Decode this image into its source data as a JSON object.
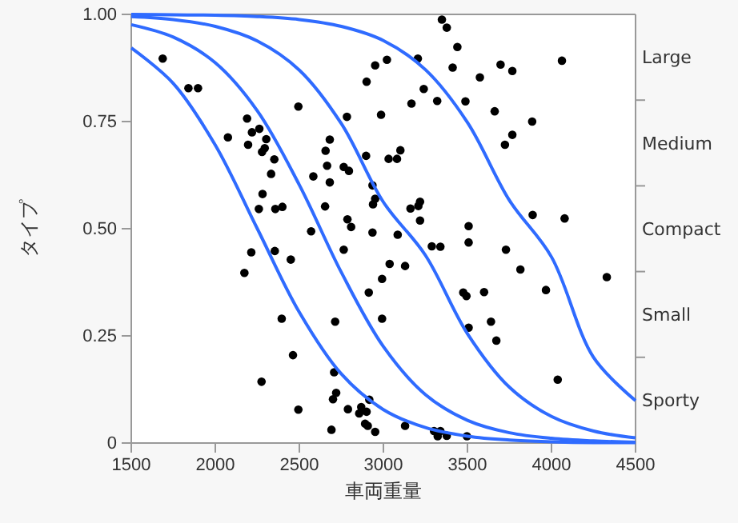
{
  "chart_data": {
    "type": "scatter",
    "xlabel": "車両重量",
    "ylabel": "タイプ",
    "xlim": [
      1500,
      4500
    ],
    "xticks": [
      1500,
      2000,
      2500,
      3000,
      3500,
      4000,
      4500
    ],
    "ylim": [
      0,
      1
    ],
    "yticks": [
      0,
      {
        "value": 0.25,
        "label": "0.25"
      },
      {
        "value": 0.5,
        "label": "0.50"
      },
      {
        "value": 0.75,
        "label": "0.75"
      },
      {
        "value": 1,
        "label": "1.00"
      }
    ],
    "y2_categories": [
      "Large",
      "Medium",
      "Compact",
      "Small",
      "Sporty"
    ],
    "grid": false,
    "marker": "circle",
    "series": [
      {
        "color": "#000000",
        "x": [
          1687,
          1840,
          1897,
          2075,
          2189,
          2218,
          2262,
          2195,
          2303,
          2278,
          2294,
          2351,
          2332,
          2281,
          2259,
          2357,
          2399,
          2494,
          2583,
          2656,
          2681,
          2665,
          2681,
          2653,
          2570,
          2764,
          2795,
          2783,
          2897,
          2900,
          2951,
          2986,
          2935,
          2951,
          2938,
          2786,
          2808,
          2935,
          2764,
          2214,
          2354,
          2449,
          2173,
          2913,
          2992,
          2395,
          2713,
          2462,
          2275,
          2707,
          2719,
          2700,
          2494,
          2789,
          2868,
          2856,
          2900,
          2916,
          2891,
          2907,
          2951,
          2691,
          2992,
          3348,
          3377,
          3440,
          3412,
          3205,
          3021,
          3240,
          3320,
          3488,
          3574,
          3697,
          3767,
          4062,
          3662,
          3885,
          3767,
          3723,
          3167,
          3101,
          3081,
          3031,
          3218,
          3208,
          3161,
          3218,
          3085,
          3507,
          3507,
          3288,
          3339,
          3037,
          3129,
          3888,
          4078,
          3729,
          3815,
          3967,
          4329,
          3475,
          3494,
          3599,
          3507,
          3640,
          3672,
          4037,
          3129,
          3301,
          3339,
          3323,
          3377,
          3497
        ],
        "values": [
          0.897,
          0.828,
          0.828,
          0.713,
          0.757,
          0.725,
          0.733,
          0.696,
          0.709,
          0.679,
          0.688,
          0.662,
          0.628,
          0.581,
          0.546,
          0.546,
          0.551,
          0.785,
          0.622,
          0.682,
          0.708,
          0.647,
          0.608,
          0.552,
          0.494,
          0.644,
          0.635,
          0.761,
          0.67,
          0.843,
          0.881,
          0.766,
          0.601,
          0.57,
          0.557,
          0.522,
          0.504,
          0.491,
          0.451,
          0.445,
          0.448,
          0.428,
          0.397,
          0.351,
          0.383,
          0.29,
          0.283,
          0.205,
          0.143,
          0.165,
          0.117,
          0.102,
          0.078,
          0.079,
          0.084,
          0.069,
          0.073,
          0.101,
          0.045,
          0.04,
          0.026,
          0.031,
          0.29,
          0.988,
          0.969,
          0.924,
          0.876,
          0.897,
          0.894,
          0.826,
          0.798,
          0.797,
          0.853,
          0.883,
          0.868,
          0.892,
          0.774,
          0.75,
          0.719,
          0.696,
          0.792,
          0.683,
          0.663,
          0.663,
          0.563,
          0.553,
          0.547,
          0.519,
          0.486,
          0.506,
          0.468,
          0.459,
          0.458,
          0.418,
          0.413,
          0.532,
          0.524,
          0.451,
          0.405,
          0.357,
          0.387,
          0.351,
          0.343,
          0.352,
          0.269,
          0.283,
          0.239,
          0.148,
          0.04,
          0.028,
          0.028,
          0.016,
          0.017,
          0.016
        ]
      },
      {
        "type": "line",
        "color": "#2f6bff",
        "marker": "none",
        "x": [
          1500,
          1750,
          2000,
          2250,
          2500,
          2750,
          3000,
          3250,
          3500,
          3750,
          4000,
          4250,
          4500
        ],
        "values": [
          0.922,
          0.839,
          0.695,
          0.5,
          0.305,
          0.161,
          0.078,
          0.036,
          0.016,
          0.007,
          0.003,
          0.001,
          0.001
        ]
      },
      {
        "type": "line",
        "color": "#2f6bff",
        "marker": "none",
        "x": [
          1500,
          1750,
          2000,
          2250,
          2500,
          2750,
          3000,
          3250,
          3500,
          3750,
          4000,
          4250,
          4500
        ],
        "values": [
          0.976,
          0.947,
          0.887,
          0.775,
          0.602,
          0.398,
          0.225,
          0.113,
          0.053,
          0.024,
          0.011,
          0.005,
          0.002
        ]
      },
      {
        "type": "line",
        "color": "#2f6bff",
        "marker": "none",
        "x": [
          1500,
          1750,
          2000,
          2250,
          2500,
          2750,
          3000,
          3250,
          3500,
          3750,
          4000,
          4250,
          4500
        ],
        "values": [
          0.995,
          0.988,
          0.972,
          0.938,
          0.87,
          0.745,
          0.562,
          0.438,
          0.255,
          0.13,
          0.062,
          0.028,
          0.012
        ]
      },
      {
        "type": "line",
        "color": "#2f6bff",
        "marker": "none",
        "x": [
          1500,
          1750,
          2000,
          2250,
          2500,
          2750,
          3000,
          3250,
          3500,
          3750,
          4000,
          4250,
          4500
        ],
        "values": [
          1.0,
          0.999,
          0.998,
          0.995,
          0.988,
          0.972,
          0.939,
          0.871,
          0.748,
          0.566,
          0.434,
          0.2,
          0.099
        ]
      }
    ]
  }
}
